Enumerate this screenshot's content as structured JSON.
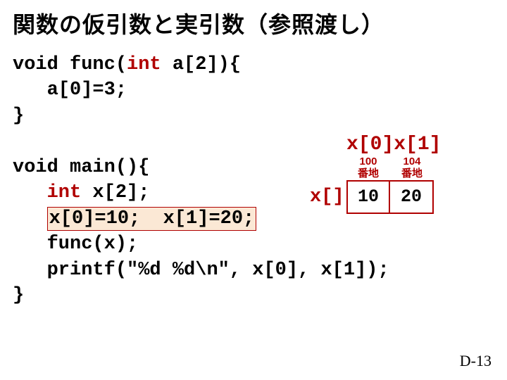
{
  "title": "関数の仮引数と実引数（参照渡し）",
  "code": {
    "func_sig_pre": "void func(",
    "func_sig_kw": "int",
    "func_sig_post": " a[2]){",
    "func_body1": "   a[0]=3;",
    "func_close": "}",
    "main_sig": "void main(){",
    "main_l1_pre": "   ",
    "main_l1_kw": "int",
    "main_l1_post": " x[2];",
    "main_l2_pre": "   ",
    "main_l2_hl": "x[0]=10;  x[1]=20;",
    "main_l3": "   func(x);",
    "main_l4": "   printf(\"%d %d\\n\", x[0], x[1]);",
    "main_close": "}"
  },
  "diagram": {
    "header_x0": "x[0]",
    "header_x1": "x[1]",
    "label": "x[]",
    "addr0_num": "100",
    "addr0_txt": "番地",
    "addr1_num": "104",
    "addr1_txt": "番地",
    "val0": "10",
    "val1": "20",
    "accent": "#b00000",
    "border_color": "#b00000",
    "cell_bg": "#ffffff"
  },
  "footer": "D-13"
}
